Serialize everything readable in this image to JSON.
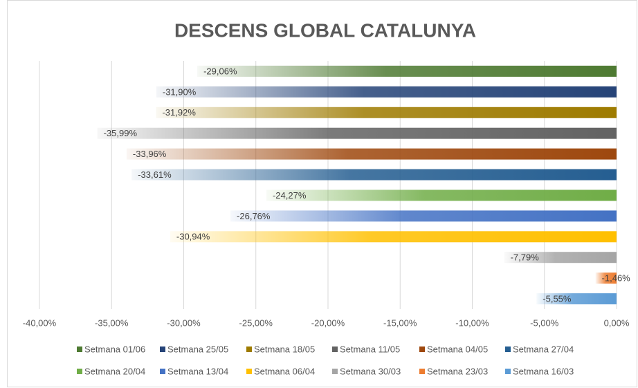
{
  "chart_data": {
    "type": "bar",
    "orientation": "horizontal",
    "title": "DESCENS GLOBAL CATALUNYA",
    "xlim": [
      -40,
      0
    ],
    "xticks": [
      {
        "value": -40,
        "label": "-40,00%"
      },
      {
        "value": -35,
        "label": "-35,00%"
      },
      {
        "value": -30,
        "label": "-30,00%"
      },
      {
        "value": -25,
        "label": "-25,00%"
      },
      {
        "value": -20,
        "label": "-20,00%"
      },
      {
        "value": -15,
        "label": "-15,00%"
      },
      {
        "value": -10,
        "label": "-10,00%"
      },
      {
        "value": -5,
        "label": "-5,00%"
      },
      {
        "value": 0,
        "label": "0,00%"
      }
    ],
    "grid": true,
    "legend": "bottom",
    "series": [
      {
        "name": "Setmana 01/06",
        "color": "#4e7a32",
        "values": [
          -29.06
        ],
        "value_labels": [
          "-29,06%"
        ]
      },
      {
        "name": "Setmana 25/05",
        "color": "#264478",
        "values": [
          -31.9
        ],
        "value_labels": [
          "-31,90%"
        ]
      },
      {
        "name": "Setmana 18/05",
        "color": "#9e7b00",
        "values": [
          -31.92
        ],
        "value_labels": [
          "-31,92%"
        ]
      },
      {
        "name": "Setmana 11/05",
        "color": "#636363",
        "values": [
          -35.99
        ],
        "value_labels": [
          "-35,99%"
        ]
      },
      {
        "name": "Setmana 04/05",
        "color": "#9e480e",
        "values": [
          -33.96
        ],
        "value_labels": [
          "-33,96%"
        ]
      },
      {
        "name": "Setmana 27/04",
        "color": "#255e91",
        "values": [
          -33.61
        ],
        "value_labels": [
          "-33,61%"
        ]
      },
      {
        "name": "Setmana 20/04",
        "color": "#70ad47",
        "values": [
          -24.27
        ],
        "value_labels": [
          "-24,27%"
        ]
      },
      {
        "name": "Setmana 13/04",
        "color": "#4472c4",
        "values": [
          -26.76
        ],
        "value_labels": [
          "-26,76%"
        ]
      },
      {
        "name": "Setmana 06/04",
        "color": "#ffc000",
        "values": [
          -30.94
        ],
        "value_labels": [
          "-30,94%"
        ]
      },
      {
        "name": "Setmana 30/03",
        "color": "#a5a5a5",
        "values": [
          -7.79
        ],
        "value_labels": [
          "-7,79%"
        ]
      },
      {
        "name": "Setmana 23/03",
        "color": "#ed7d31",
        "values": [
          -1.46
        ],
        "value_labels": [
          "-1,46%"
        ]
      },
      {
        "name": "Setmana 16/03",
        "color": "#5b9bd5",
        "values": [
          -5.55
        ],
        "value_labels": [
          "-5,55%"
        ]
      }
    ]
  }
}
